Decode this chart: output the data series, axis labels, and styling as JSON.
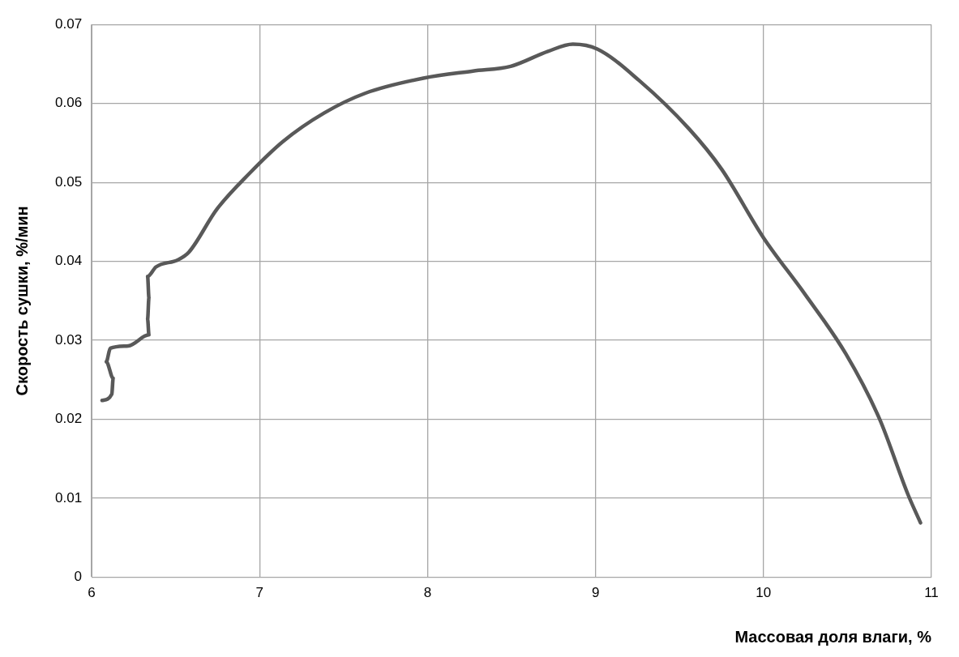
{
  "chart_data": {
    "type": "line",
    "xlabel": "Массовая доля влаги, %",
    "ylabel": "Скорость сушки, %/мин",
    "xlim": [
      6,
      11
    ],
    "xticks": [
      6,
      7,
      8,
      9,
      10,
      11
    ],
    "ylim": [
      0,
      0.07
    ],
    "yticks": [
      0,
      0.01,
      0.02,
      0.03,
      0.04,
      0.05,
      0.06,
      0.07
    ],
    "grid": true,
    "legend": false,
    "marker": "none",
    "line_style": "solid",
    "series": [
      {
        "color": "#595959",
        "x": [
          6.062,
          6.12,
          6.128,
          6.087,
          6.111,
          6.218,
          6.341,
          6.333,
          6.341,
          6.333,
          6.383,
          6.514,
          6.58,
          6.745,
          6.942,
          7.14,
          7.385,
          7.63,
          7.975,
          8.27,
          8.495,
          8.717,
          8.865,
          9.01,
          9.26,
          9.556,
          9.75,
          10.0,
          10.245,
          10.49,
          10.69,
          10.86,
          10.935
        ],
        "values": [
          0.0224,
          0.0232,
          0.0252,
          0.0273,
          0.029,
          0.0293,
          0.0307,
          0.0327,
          0.0354,
          0.0381,
          0.0393,
          0.0402,
          0.0412,
          0.0466,
          0.0512,
          0.0552,
          0.0588,
          0.0613,
          0.0632,
          0.0641,
          0.0647,
          0.0666,
          0.0675,
          0.0669,
          0.0629,
          0.0568,
          0.0517,
          0.043,
          0.0359,
          0.0283,
          0.0201,
          0.0105,
          0.0069
        ]
      }
    ]
  }
}
